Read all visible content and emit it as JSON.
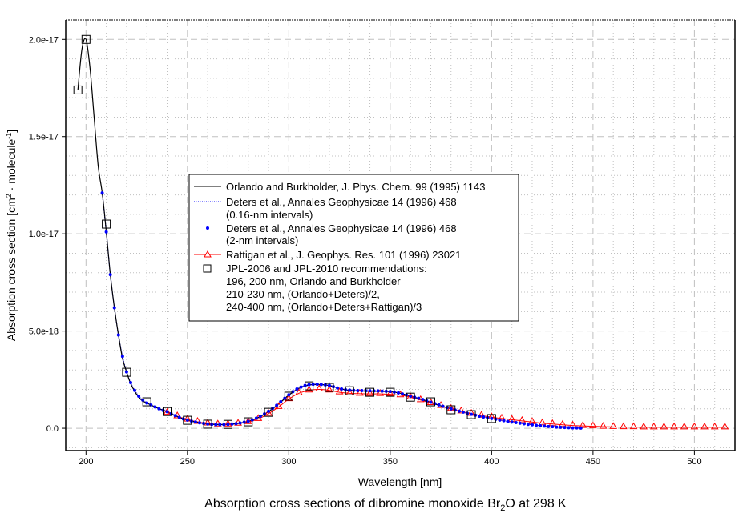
{
  "chart_data": {
    "type": "line",
    "title": "Absorption cross sections of dibromine monoxide Br",
    "title_sub": "2",
    "title_tail": "O at 298 K",
    "xlabel": "Wavelength [nm]",
    "ylabel": "Absorption cross section [cm",
    "ylabel_sup1": "2",
    "ylabel_mid": " · molecule",
    "ylabel_sup2": "-1",
    "ylabel_end": "]",
    "xlim": [
      190,
      520
    ],
    "ylim": [
      -1.15e-18,
      2.1e-17
    ],
    "x_ticks": [
      200,
      250,
      300,
      350,
      400,
      450,
      500
    ],
    "x_tick_labels": [
      "200",
      "250",
      "300",
      "350",
      "400",
      "450",
      "500"
    ],
    "y_ticks": [
      0,
      5e-18,
      1e-17,
      1.5e-17,
      2e-17
    ],
    "y_tick_labels": [
      "0.0",
      "5.0e-18",
      "1.0e-17",
      "1.5e-17",
      "2.0e-17"
    ],
    "grid": true,
    "legend_placement": "center-left",
    "series": [
      {
        "name": "Orlando and Burkholder, J. Phys. Chem. 99 (1995) 1143",
        "style": "solid-line",
        "color": "#000000",
        "x": [
          196,
          198,
          200,
          202,
          204,
          206,
          208,
          210,
          212,
          214,
          216,
          218,
          220,
          222,
          224,
          226,
          228,
          230,
          235,
          240,
          245,
          250,
          255,
          260,
          265,
          270,
          275,
          280,
          285,
          290,
          295,
          300,
          305,
          310,
          315,
          320,
          325,
          330,
          335,
          340,
          345,
          350,
          355,
          360,
          365,
          370,
          375,
          380
        ],
        "y": [
          1.74e-17,
          1.95e-17,
          2e-17,
          1.85e-17,
          1.6e-17,
          1.35e-17,
          1.21e-17,
          1.01e-17,
          7.9e-18,
          6.2e-18,
          4.8e-18,
          3.6e-18,
          2.9e-18,
          2.3e-18,
          1.9e-18,
          1.6e-18,
          1.4e-18,
          1.3e-18,
          1.05e-18,
          8.6e-19,
          6e-19,
          4.2e-19,
          3e-19,
          2.2e-19,
          1.9e-19,
          2e-19,
          2.5e-19,
          3.5e-19,
          5.5e-19,
          8.5e-19,
          1.25e-18,
          1.7e-18,
          2.05e-18,
          2.22e-18,
          2.25e-18,
          2.2e-18,
          2.05e-18,
          1.95e-18,
          1.92e-18,
          1.9e-18,
          1.9e-18,
          1.88e-18,
          1.8e-18,
          1.65e-18,
          1.5e-18,
          1.33e-18,
          1.15e-18,
          1e-18
        ]
      },
      {
        "name": "Deters et al., Annales Geophysicae 14 (1996) 468",
        "name_line2": "(0.16-nm intervals)",
        "style": "dotted-line",
        "color": "#0000ff"
      },
      {
        "name": "Deters et al., Annales Geophysicae 14 (1996) 468",
        "name_line2": "(2-nm intervals)",
        "style": "dots",
        "color": "#0000ff",
        "x_start": 208,
        "x_step": 2,
        "y": [
          1.21e-17,
          1.01e-17,
          7.9e-18,
          6.2e-18,
          4.8e-18,
          3.7e-18,
          2.9e-18,
          2.35e-18,
          1.95e-18,
          1.65e-18,
          1.45e-18,
          1.3e-18,
          1.2e-18,
          1.1e-18,
          1e-18,
          9.2e-19,
          8.5e-19,
          7.5e-19,
          6.5e-19,
          5.6e-19,
          4.8e-19,
          4.2e-19,
          3.7e-19,
          3.2e-19,
          2.8e-19,
          2.5e-19,
          2.2e-19,
          2e-19,
          1.9e-19,
          1.9e-19,
          1.9e-19,
          2e-19,
          2.2e-19,
          2.4e-19,
          2.7e-19,
          3.1e-19,
          3.6e-19,
          4.3e-19,
          5.2e-19,
          6.2e-19,
          7.4e-19,
          8.7e-19,
          1.02e-18,
          1.18e-18,
          1.36e-18,
          1.54e-18,
          1.72e-18,
          1.88e-18,
          2.02e-18,
          2.12e-18,
          2.2e-18,
          2.24e-18,
          2.26e-18,
          2.26e-18,
          2.25e-18,
          2.23e-18,
          2.2e-18,
          2.14e-18,
          2.07e-18,
          2.02e-18,
          1.98e-18,
          1.96e-18,
          1.95e-18,
          1.94e-18,
          1.94e-18,
          1.93e-18,
          1.93e-18,
          1.92e-18,
          1.92e-18,
          1.91e-18,
          1.9e-18,
          1.89e-18,
          1.86e-18,
          1.82e-18,
          1.77e-18,
          1.71e-18,
          1.65e-18,
          1.6e-18,
          1.54e-18,
          1.48e-18,
          1.41e-18,
          1.34e-18,
          1.27e-18,
          1.2e-18,
          1.13e-18,
          1.06e-18,
          1e-18,
          9.4e-19,
          8.8e-19,
          8.3e-19,
          7.7e-19,
          7.2e-19,
          6.7e-19,
          6.2e-19,
          5.8e-19,
          5.4e-19,
          5e-19,
          4.6e-19,
          4.2e-19,
          3.9e-19,
          3.5e-19,
          3.2e-19,
          2.9e-19,
          2.6e-19,
          2.3e-19,
          2e-19,
          1.8e-19,
          1.5e-19,
          1.3e-19,
          1.1e-19,
          9e-20,
          8e-20,
          6e-20,
          5e-20,
          4e-20,
          3e-20,
          2e-20,
          2e-20,
          1e-20
        ]
      },
      {
        "name": "Rattigan et al., J. Geophys. Res. 101 (1996) 23021",
        "style": "line-triangles",
        "color": "#ff0000",
        "x_start": 240,
        "x_step": 5,
        "y": [
          8e-19,
          6.2e-19,
          4.5e-19,
          3.3e-19,
          2.5e-19,
          2e-19,
          2e-19,
          2.4e-19,
          3.2e-19,
          4.8e-19,
          7.5e-19,
          1.1e-18,
          1.5e-18,
          1.8e-18,
          1.95e-18,
          2e-18,
          1.95e-18,
          1.85e-18,
          1.8e-18,
          1.78e-18,
          1.77e-18,
          1.77e-18,
          1.75e-18,
          1.7e-18,
          1.6e-18,
          1.45e-18,
          1.3e-18,
          1.15e-18,
          1e-18,
          8.7e-19,
          7.5e-19,
          6.5e-19,
          5.7e-19,
          5e-19,
          4.4e-19,
          3.8e-19,
          3.2e-19,
          2.6e-19,
          2.2e-19,
          1.8e-19,
          1.4e-19,
          1.2e-19,
          1e-19,
          8e-20,
          7e-20,
          6e-20,
          6e-20,
          5e-20,
          5e-20,
          5e-20,
          5e-20,
          5e-20,
          5e-20,
          5e-20,
          5e-20,
          5e-20
        ]
      },
      {
        "name": "JPL-2006 and JPL-2010 recommendations:",
        "name_lines": [
          "196, 200 nm, Orlando and Burkholder",
          "210-230 nm, (Orlando+Deters)/2,",
          "240-400 nm, (Orlando+Deters+Rattigan)/3"
        ],
        "style": "open-squares",
        "color": "#000000",
        "x": [
          196,
          200,
          210,
          220,
          230,
          240,
          250,
          260,
          270,
          280,
          290,
          300,
          310,
          320,
          330,
          340,
          350,
          360,
          370,
          380,
          390,
          400
        ],
        "y": [
          1.74e-17,
          2e-17,
          1.05e-17,
          2.88e-18,
          1.36e-18,
          8.6e-19,
          4.1e-19,
          2.1e-19,
          2e-19,
          3.3e-19,
          8.2e-19,
          1.65e-18,
          2.18e-18,
          2.1e-18,
          1.93e-18,
          1.85e-18,
          1.85e-18,
          1.6e-18,
          1.36e-18,
          9.5e-19,
          7e-19,
          5e-19
        ]
      }
    ]
  }
}
